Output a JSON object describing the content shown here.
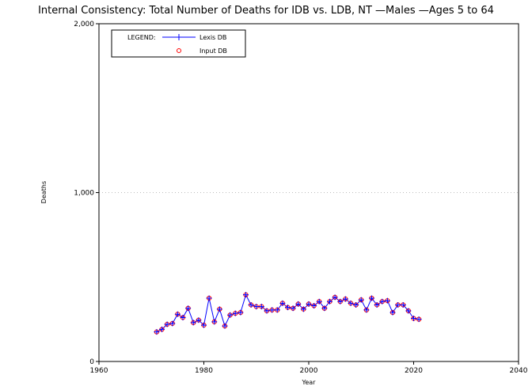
{
  "chart_data": {
    "type": "line",
    "title": "Internal Consistency: Total Number of Deaths for IDB vs. LDB, NT —Males —Ages 5 to 64",
    "xlabel": "Year",
    "ylabel": "Deaths",
    "xlim": [
      1960,
      2040
    ],
    "ylim": [
      0,
      2000
    ],
    "x_ticks": [
      1960,
      1980,
      2000,
      2020,
      2040
    ],
    "y_ticks": [
      0,
      1000,
      2000
    ],
    "x_tick_labels": [
      "1960",
      "1980",
      "2000",
      "2020",
      "2040"
    ],
    "y_tick_labels": [
      "0",
      "1,000",
      "2,000"
    ],
    "legend": {
      "title": "LEGEND:",
      "placement": "top-left",
      "entries": [
        {
          "name": "Lexis DB",
          "marker": "plus",
          "color": "#0000ff",
          "line": true
        },
        {
          "name": "Input DB",
          "marker": "circle",
          "color": "#ff0000",
          "line": false
        }
      ]
    },
    "x": [
      1971,
      1972,
      1973,
      1974,
      1975,
      1976,
      1977,
      1978,
      1979,
      1980,
      1981,
      1982,
      1983,
      1984,
      1985,
      1986,
      1987,
      1988,
      1989,
      1990,
      1991,
      1992,
      1993,
      1994,
      1995,
      1996,
      1997,
      1998,
      1999,
      2000,
      2001,
      2002,
      2003,
      2004,
      2005,
      2006,
      2007,
      2008,
      2009,
      2010,
      2011,
      2012,
      2013,
      2014,
      2015,
      2016,
      2017,
      2018,
      2019,
      2020,
      2021
    ],
    "series": [
      {
        "name": "Lexis DB",
        "values": [
          175,
          190,
          220,
          225,
          280,
          260,
          315,
          230,
          245,
          215,
          375,
          235,
          310,
          210,
          275,
          285,
          290,
          395,
          335,
          325,
          325,
          300,
          305,
          305,
          345,
          320,
          315,
          340,
          310,
          340,
          330,
          355,
          315,
          355,
          380,
          355,
          370,
          345,
          335,
          365,
          305,
          375,
          335,
          355,
          360,
          290,
          335,
          335,
          300,
          255,
          250
        ]
      },
      {
        "name": "Input DB",
        "values": [
          175,
          190,
          220,
          225,
          280,
          260,
          315,
          230,
          245,
          215,
          375,
          235,
          310,
          210,
          275,
          285,
          290,
          395,
          335,
          325,
          325,
          300,
          305,
          305,
          345,
          320,
          315,
          340,
          310,
          340,
          330,
          355,
          315,
          355,
          380,
          355,
          370,
          345,
          335,
          365,
          305,
          375,
          335,
          355,
          360,
          290,
          335,
          335,
          300,
          255,
          250
        ]
      }
    ]
  }
}
